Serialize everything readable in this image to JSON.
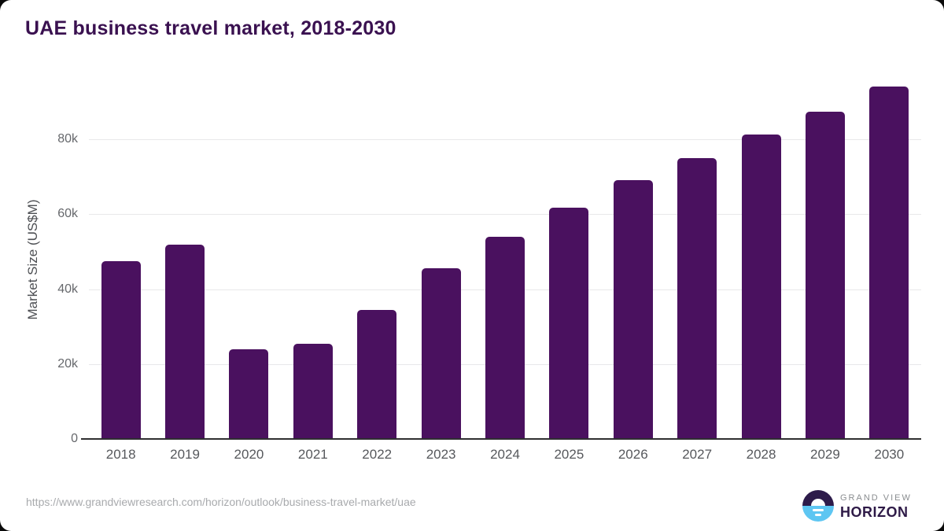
{
  "title": "UAE business travel market, 2018-2030",
  "chart_data": {
    "type": "bar",
    "title": "UAE business travel market, 2018-2030",
    "categories": [
      "2018",
      "2019",
      "2020",
      "2021",
      "2022",
      "2023",
      "2024",
      "2025",
      "2026",
      "2027",
      "2028",
      "2029",
      "2030"
    ],
    "values": [
      47500,
      51800,
      24000,
      25500,
      34400,
      45500,
      54000,
      61800,
      69000,
      75000,
      81300,
      87300,
      94000
    ],
    "xlabel": "",
    "ylabel": "Market Size (US$M)",
    "yticks": [
      {
        "value": 0,
        "label": "0"
      },
      {
        "value": 20000,
        "label": "20k"
      },
      {
        "value": 40000,
        "label": "40k"
      },
      {
        "value": 60000,
        "label": "60k"
      },
      {
        "value": 80000,
        "label": "80k"
      }
    ],
    "ylim": [
      0,
      96000
    ],
    "grid": "horizontal",
    "legend": "none",
    "bar_color": "#4a115f"
  },
  "footer": {
    "source_url": "https://www.grandviewresearch.com/horizon/outlook/business-travel-market/uae",
    "logo": {
      "line1": "GRAND VIEW",
      "line2": "HORIZON"
    }
  },
  "colors": {
    "bar": "#4a115f",
    "title": "#3a1150",
    "gridline": "#e8e8ea",
    "axis_line": "#2f2f31",
    "tick_label": "#56585c",
    "url_text": "#a8aaad",
    "logo_purple": "#2d1b4a",
    "logo_blue": "#5ec6f2"
  }
}
